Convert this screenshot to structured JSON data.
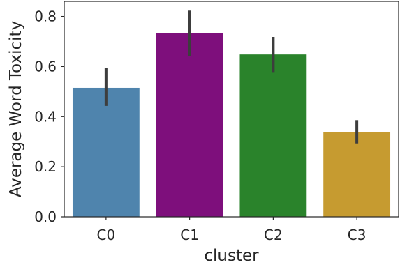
{
  "chart_data": {
    "type": "bar",
    "xlabel": "cluster",
    "ylabel": "Average Word Toxicity",
    "categories": [
      "C0",
      "C1",
      "C2",
      "C3"
    ],
    "values": [
      0.515,
      0.733,
      0.648,
      0.338
    ],
    "error_low": [
      0.443,
      0.643,
      0.578,
      0.293
    ],
    "error_high": [
      0.593,
      0.823,
      0.718,
      0.386
    ],
    "colors": [
      "#4f84ad",
      "#7e0f7c",
      "#2a832b",
      "#c69b30"
    ],
    "error_color": "#3d3d3d",
    "ylim": [
      0,
      0.86
    ],
    "yticks": [
      0.0,
      0.2,
      0.4,
      0.6,
      0.8
    ],
    "ytick_labels": [
      "0.0",
      "0.2",
      "0.4",
      "0.6",
      "0.8"
    ],
    "grid": false,
    "legend": "none"
  }
}
